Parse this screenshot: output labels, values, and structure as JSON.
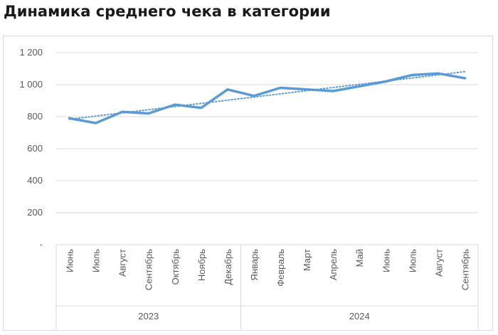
{
  "page": {
    "title": "Динамика среднего чека в категории"
  },
  "chart_data": {
    "type": "line",
    "title": "Динамика среднего чека в категории",
    "categories": [
      "Июнь",
      "Июль",
      "Август",
      "Сентябрь",
      "Октябрь",
      "Ноябрь",
      "Декабрь",
      "Январь",
      "Февраль",
      "Март",
      "Апрель",
      "Май",
      "Июнь",
      "Июль",
      "Август",
      "Сентябрь"
    ],
    "year_groups": [
      {
        "label": "2023",
        "from": 0,
        "to": 6
      },
      {
        "label": "2024",
        "from": 7,
        "to": 15
      }
    ],
    "series": [
      {
        "values": [
          790,
          760,
          830,
          820,
          875,
          855,
          970,
          930,
          980,
          970,
          960,
          990,
          1020,
          1060,
          1070,
          1040
        ],
        "color": "#5b9bd5",
        "style": "solid"
      },
      {
        "trendline": "linear",
        "color": "#5b9bd5",
        "style": "dotted"
      }
    ],
    "ylim": [
      0,
      1200
    ],
    "yticks": [
      0,
      200,
      400,
      600,
      800,
      1000,
      1200
    ],
    "ytick_labels": [
      "-",
      "200",
      "400",
      "600",
      "800",
      "1 000",
      "1 200"
    ],
    "grid": true,
    "xlabel": "",
    "ylabel": ""
  }
}
